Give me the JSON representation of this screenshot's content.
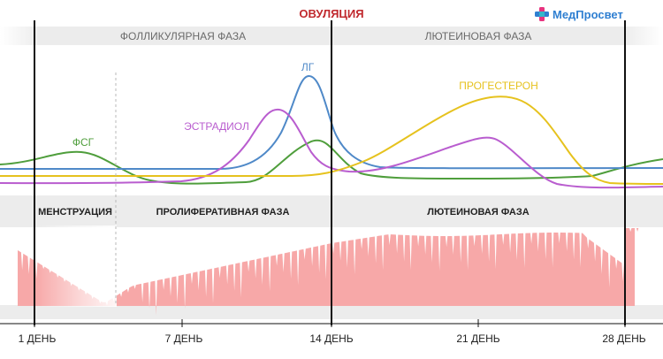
{
  "logo": {
    "text": "МедПросвет",
    "icon": "medical-cross-icon",
    "colors": {
      "pink": "#e8337f",
      "blue": "#2f7fd1",
      "teal": "#35b7c9"
    }
  },
  "header": {
    "ovulation_label": "ОВУЛЯЦИЯ",
    "ovulation_color": "#c0282d"
  },
  "phase_bands": {
    "follicular": "ФОЛЛИКУЛЯРНАЯ ФАЗА",
    "luteal": "ЛЮТЕИНОВАЯ ФАЗА"
  },
  "endometrium_bands": {
    "menstruation": "МЕНСТРУАЦИЯ",
    "proliferative": "ПРОЛИФЕРАТИВНАЯ ФАЗА",
    "luteal": "ЛЮТЕИНОВАЯ ФАЗА"
  },
  "hormones": {
    "fsh": {
      "label": "ФСГ",
      "color": "#4f9e3c"
    },
    "estradiol": {
      "label": "ЭСТРАДИОЛ",
      "color": "#b95dcf"
    },
    "lh": {
      "label": "ЛГ",
      "color": "#4f89c8"
    },
    "progesterone": {
      "label": "ПРОГЕСТЕРОН",
      "color": "#e6c21e"
    }
  },
  "endometrium_color": "#f7a8a8",
  "axis": {
    "ticks": [
      "1 ДЕНЬ",
      "7 ДЕНЬ",
      "14 ДЕНЬ",
      "21 ДЕНЬ",
      "28 ДЕНЬ"
    ]
  }
}
